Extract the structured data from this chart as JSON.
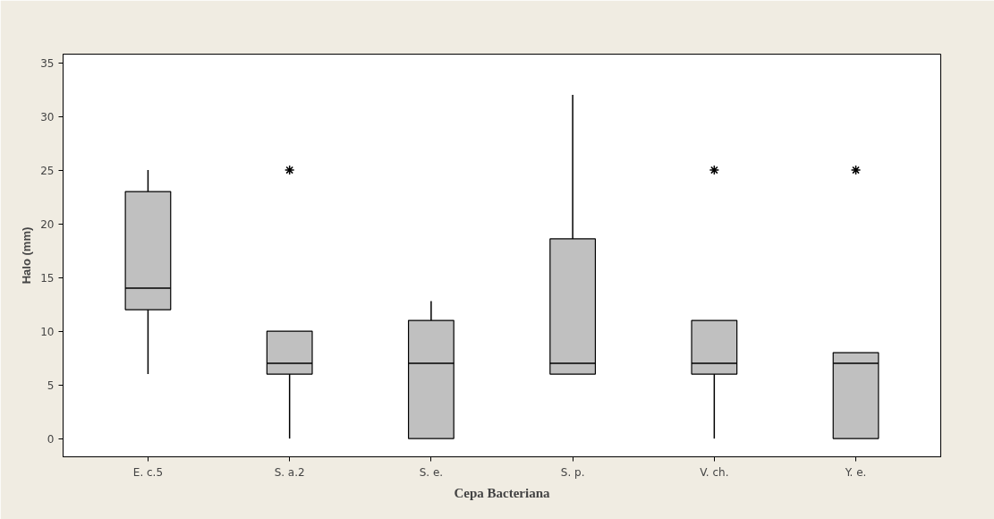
{
  "chart_data": {
    "type": "box",
    "xlabel": "Cepa Bacteriana",
    "ylabel": "Halo (mm)",
    "categories": [
      "E. c.5",
      "S. a.2",
      "S. e.",
      "S. p.",
      "V. ch.",
      "Y. e."
    ],
    "boxes": [
      {
        "low": 6,
        "q1": 12,
        "median": 14,
        "q3": 23,
        "high": 25
      },
      {
        "low": 0,
        "q1": 6,
        "median": 7,
        "q3": 10,
        "high": 10,
        "outliers": [
          25
        ]
      },
      {
        "low": 0,
        "q1": 0,
        "median": 7,
        "q3": 11,
        "high": 12.8
      },
      {
        "low": 6,
        "q1": 6,
        "median": 7,
        "q3": 18.6,
        "high": 32
      },
      {
        "low": 0,
        "q1": 6,
        "median": 7,
        "q3": 11,
        "high": 11,
        "outliers": [
          25
        ]
      },
      {
        "low": 0,
        "q1": 0,
        "median": 7,
        "q3": 8,
        "high": 8,
        "outliers": [
          25
        ]
      }
    ],
    "color": "#c0c0c0",
    "ylim": [
      -1.7,
      35.8
    ],
    "yticks": [
      0,
      5,
      10,
      15,
      20,
      25,
      30,
      35
    ],
    "grid": false
  }
}
